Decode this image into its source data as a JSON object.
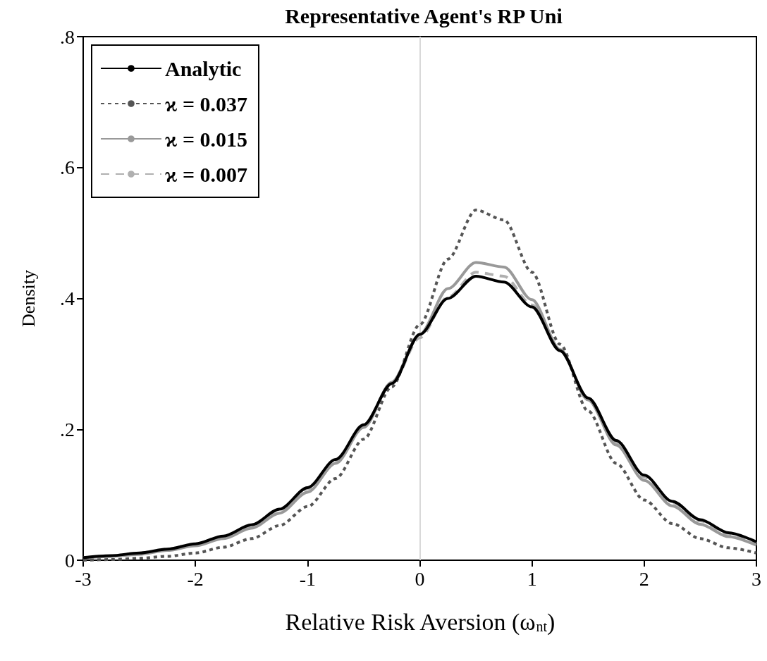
{
  "chart_data": {
    "type": "line",
    "title": "Representative Agent's RP Uni",
    "xlabel": "Relative Risk Aversion (ω$_{nt}$)",
    "ylabel": "Density",
    "x": [
      -3,
      -2.75,
      -2.5,
      -2.25,
      -2,
      -1.75,
      -1.5,
      -1.25,
      -1,
      -0.75,
      -0.5,
      -0.25,
      0,
      0.25,
      0.5,
      0.75,
      1,
      1.25,
      1.5,
      1.75,
      2,
      2.25,
      2.5,
      2.75,
      3
    ],
    "series": [
      {
        "name": "Analytic",
        "color": "#000000",
        "line_style": "solid",
        "values": [
          0.004,
          0.007,
          0.011,
          0.017,
          0.025,
          0.037,
          0.054,
          0.078,
          0.111,
          0.154,
          0.207,
          0.27,
          0.345,
          0.4,
          0.434,
          0.425,
          0.387,
          0.32,
          0.248,
          0.183,
          0.13,
          0.09,
          0.062,
          0.042,
          0.028
        ]
      },
      {
        "name": "ϰ = 0.037",
        "color": "#555555",
        "line_style": "dotted",
        "values": [
          0.0,
          0.001,
          0.003,
          0.006,
          0.011,
          0.02,
          0.033,
          0.053,
          0.082,
          0.125,
          0.185,
          0.265,
          0.36,
          0.46,
          0.535,
          0.52,
          0.44,
          0.33,
          0.228,
          0.148,
          0.092,
          0.056,
          0.033,
          0.019,
          0.011
        ]
      },
      {
        "name": "ϰ = 0.015",
        "color": "#999999",
        "line_style": "solid",
        "values": [
          0.003,
          0.006,
          0.009,
          0.015,
          0.022,
          0.033,
          0.049,
          0.072,
          0.104,
          0.148,
          0.203,
          0.272,
          0.345,
          0.415,
          0.455,
          0.448,
          0.398,
          0.322,
          0.245,
          0.176,
          0.122,
          0.083,
          0.055,
          0.036,
          0.023
        ]
      },
      {
        "name": "ϰ = 0.007",
        "color": "#b0b0b0",
        "line_style": "dashed",
        "values": [
          0.004,
          0.007,
          0.011,
          0.017,
          0.025,
          0.036,
          0.053,
          0.077,
          0.109,
          0.152,
          0.206,
          0.27,
          0.34,
          0.402,
          0.44,
          0.434,
          0.39,
          0.321,
          0.247,
          0.18,
          0.127,
          0.088,
          0.06,
          0.04,
          0.026
        ]
      }
    ],
    "xlim": [
      -3,
      3
    ],
    "xticks": [
      -3,
      -2,
      -1,
      0,
      1,
      2,
      3
    ],
    "ylim": [
      0,
      0.8
    ],
    "yticks": [
      0,
      {
        "value": 0.2,
        "label": ".2"
      },
      {
        "value": 0.4,
        "label": ".4"
      },
      {
        "value": 0.6,
        "label": ".6"
      },
      {
        "value": 0.8,
        "label": ".8"
      }
    ],
    "ref_lines": [
      {
        "axis": "x",
        "value": 0,
        "label": null,
        "color": "#d9d9d9"
      }
    ],
    "grid": false,
    "legend": "top left",
    "marker": "none"
  }
}
